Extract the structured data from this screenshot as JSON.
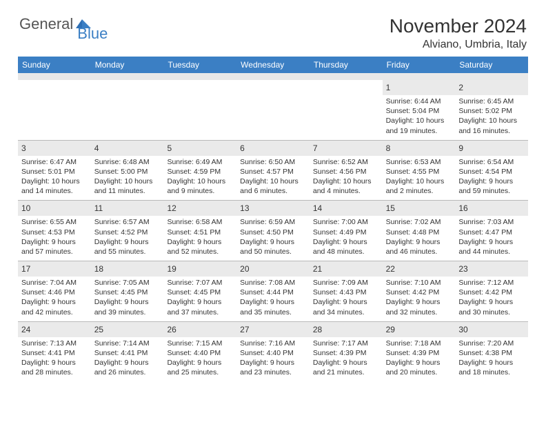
{
  "logo": {
    "general": "General",
    "blue": "Blue"
  },
  "title": "November 2024",
  "location": "Alviano, Umbria, Italy",
  "colors": {
    "header_bg": "#3b7fc4",
    "header_text": "#ffffff",
    "daynum_bg": "#eaeaea",
    "border": "#b9b9b9",
    "text": "#333333"
  },
  "dow": [
    "Sunday",
    "Monday",
    "Tuesday",
    "Wednesday",
    "Thursday",
    "Friday",
    "Saturday"
  ],
  "weeks": [
    [
      {
        "n": "",
        "sr": "",
        "ss": "",
        "dl": ""
      },
      {
        "n": "",
        "sr": "",
        "ss": "",
        "dl": ""
      },
      {
        "n": "",
        "sr": "",
        "ss": "",
        "dl": ""
      },
      {
        "n": "",
        "sr": "",
        "ss": "",
        "dl": ""
      },
      {
        "n": "",
        "sr": "",
        "ss": "",
        "dl": ""
      },
      {
        "n": "1",
        "sr": "Sunrise: 6:44 AM",
        "ss": "Sunset: 5:04 PM",
        "dl": "Daylight: 10 hours and 19 minutes."
      },
      {
        "n": "2",
        "sr": "Sunrise: 6:45 AM",
        "ss": "Sunset: 5:02 PM",
        "dl": "Daylight: 10 hours and 16 minutes."
      }
    ],
    [
      {
        "n": "3",
        "sr": "Sunrise: 6:47 AM",
        "ss": "Sunset: 5:01 PM",
        "dl": "Daylight: 10 hours and 14 minutes."
      },
      {
        "n": "4",
        "sr": "Sunrise: 6:48 AM",
        "ss": "Sunset: 5:00 PM",
        "dl": "Daylight: 10 hours and 11 minutes."
      },
      {
        "n": "5",
        "sr": "Sunrise: 6:49 AM",
        "ss": "Sunset: 4:59 PM",
        "dl": "Daylight: 10 hours and 9 minutes."
      },
      {
        "n": "6",
        "sr": "Sunrise: 6:50 AM",
        "ss": "Sunset: 4:57 PM",
        "dl": "Daylight: 10 hours and 6 minutes."
      },
      {
        "n": "7",
        "sr": "Sunrise: 6:52 AM",
        "ss": "Sunset: 4:56 PM",
        "dl": "Daylight: 10 hours and 4 minutes."
      },
      {
        "n": "8",
        "sr": "Sunrise: 6:53 AM",
        "ss": "Sunset: 4:55 PM",
        "dl": "Daylight: 10 hours and 2 minutes."
      },
      {
        "n": "9",
        "sr": "Sunrise: 6:54 AM",
        "ss": "Sunset: 4:54 PM",
        "dl": "Daylight: 9 hours and 59 minutes."
      }
    ],
    [
      {
        "n": "10",
        "sr": "Sunrise: 6:55 AM",
        "ss": "Sunset: 4:53 PM",
        "dl": "Daylight: 9 hours and 57 minutes."
      },
      {
        "n": "11",
        "sr": "Sunrise: 6:57 AM",
        "ss": "Sunset: 4:52 PM",
        "dl": "Daylight: 9 hours and 55 minutes."
      },
      {
        "n": "12",
        "sr": "Sunrise: 6:58 AM",
        "ss": "Sunset: 4:51 PM",
        "dl": "Daylight: 9 hours and 52 minutes."
      },
      {
        "n": "13",
        "sr": "Sunrise: 6:59 AM",
        "ss": "Sunset: 4:50 PM",
        "dl": "Daylight: 9 hours and 50 minutes."
      },
      {
        "n": "14",
        "sr": "Sunrise: 7:00 AM",
        "ss": "Sunset: 4:49 PM",
        "dl": "Daylight: 9 hours and 48 minutes."
      },
      {
        "n": "15",
        "sr": "Sunrise: 7:02 AM",
        "ss": "Sunset: 4:48 PM",
        "dl": "Daylight: 9 hours and 46 minutes."
      },
      {
        "n": "16",
        "sr": "Sunrise: 7:03 AM",
        "ss": "Sunset: 4:47 PM",
        "dl": "Daylight: 9 hours and 44 minutes."
      }
    ],
    [
      {
        "n": "17",
        "sr": "Sunrise: 7:04 AM",
        "ss": "Sunset: 4:46 PM",
        "dl": "Daylight: 9 hours and 42 minutes."
      },
      {
        "n": "18",
        "sr": "Sunrise: 7:05 AM",
        "ss": "Sunset: 4:45 PM",
        "dl": "Daylight: 9 hours and 39 minutes."
      },
      {
        "n": "19",
        "sr": "Sunrise: 7:07 AM",
        "ss": "Sunset: 4:45 PM",
        "dl": "Daylight: 9 hours and 37 minutes."
      },
      {
        "n": "20",
        "sr": "Sunrise: 7:08 AM",
        "ss": "Sunset: 4:44 PM",
        "dl": "Daylight: 9 hours and 35 minutes."
      },
      {
        "n": "21",
        "sr": "Sunrise: 7:09 AM",
        "ss": "Sunset: 4:43 PM",
        "dl": "Daylight: 9 hours and 34 minutes."
      },
      {
        "n": "22",
        "sr": "Sunrise: 7:10 AM",
        "ss": "Sunset: 4:42 PM",
        "dl": "Daylight: 9 hours and 32 minutes."
      },
      {
        "n": "23",
        "sr": "Sunrise: 7:12 AM",
        "ss": "Sunset: 4:42 PM",
        "dl": "Daylight: 9 hours and 30 minutes."
      }
    ],
    [
      {
        "n": "24",
        "sr": "Sunrise: 7:13 AM",
        "ss": "Sunset: 4:41 PM",
        "dl": "Daylight: 9 hours and 28 minutes."
      },
      {
        "n": "25",
        "sr": "Sunrise: 7:14 AM",
        "ss": "Sunset: 4:41 PM",
        "dl": "Daylight: 9 hours and 26 minutes."
      },
      {
        "n": "26",
        "sr": "Sunrise: 7:15 AM",
        "ss": "Sunset: 4:40 PM",
        "dl": "Daylight: 9 hours and 25 minutes."
      },
      {
        "n": "27",
        "sr": "Sunrise: 7:16 AM",
        "ss": "Sunset: 4:40 PM",
        "dl": "Daylight: 9 hours and 23 minutes."
      },
      {
        "n": "28",
        "sr": "Sunrise: 7:17 AM",
        "ss": "Sunset: 4:39 PM",
        "dl": "Daylight: 9 hours and 21 minutes."
      },
      {
        "n": "29",
        "sr": "Sunrise: 7:18 AM",
        "ss": "Sunset: 4:39 PM",
        "dl": "Daylight: 9 hours and 20 minutes."
      },
      {
        "n": "30",
        "sr": "Sunrise: 7:20 AM",
        "ss": "Sunset: 4:38 PM",
        "dl": "Daylight: 9 hours and 18 minutes."
      }
    ]
  ]
}
